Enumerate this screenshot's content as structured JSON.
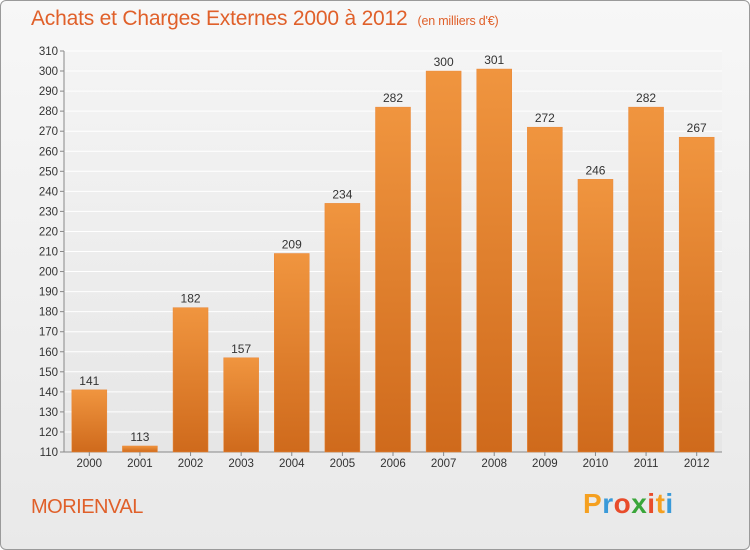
{
  "chart_data": {
    "type": "bar",
    "title": "Achats et Charges Externes 2000 à 2012",
    "subtitle": "(en milliers d'€)",
    "categories": [
      "2000",
      "2001",
      "2002",
      "2003",
      "2004",
      "2005",
      "2006",
      "2007",
      "2008",
      "2009",
      "2010",
      "2011",
      "2012"
    ],
    "values": [
      141,
      113,
      182,
      157,
      209,
      234,
      282,
      300,
      301,
      272,
      246,
      282,
      267
    ],
    "ylim": [
      110,
      310
    ],
    "yticks": [
      110,
      120,
      130,
      140,
      150,
      160,
      170,
      180,
      190,
      200,
      210,
      220,
      230,
      240,
      250,
      260,
      270,
      280,
      290,
      300,
      310
    ],
    "grid": true,
    "bar_color": "#f0953f",
    "bar_color_dark": "#cf6a1c"
  },
  "commune": "MORIENVAL",
  "logo": {
    "letters": [
      "P",
      "r",
      "o",
      "x",
      "i",
      "t",
      "i"
    ],
    "colors": [
      "#f5a020",
      "#3a9ad9",
      "#e84c2b",
      "#3aa63a",
      "#e84c2b",
      "#f5a020",
      "#3a9ad9"
    ]
  }
}
